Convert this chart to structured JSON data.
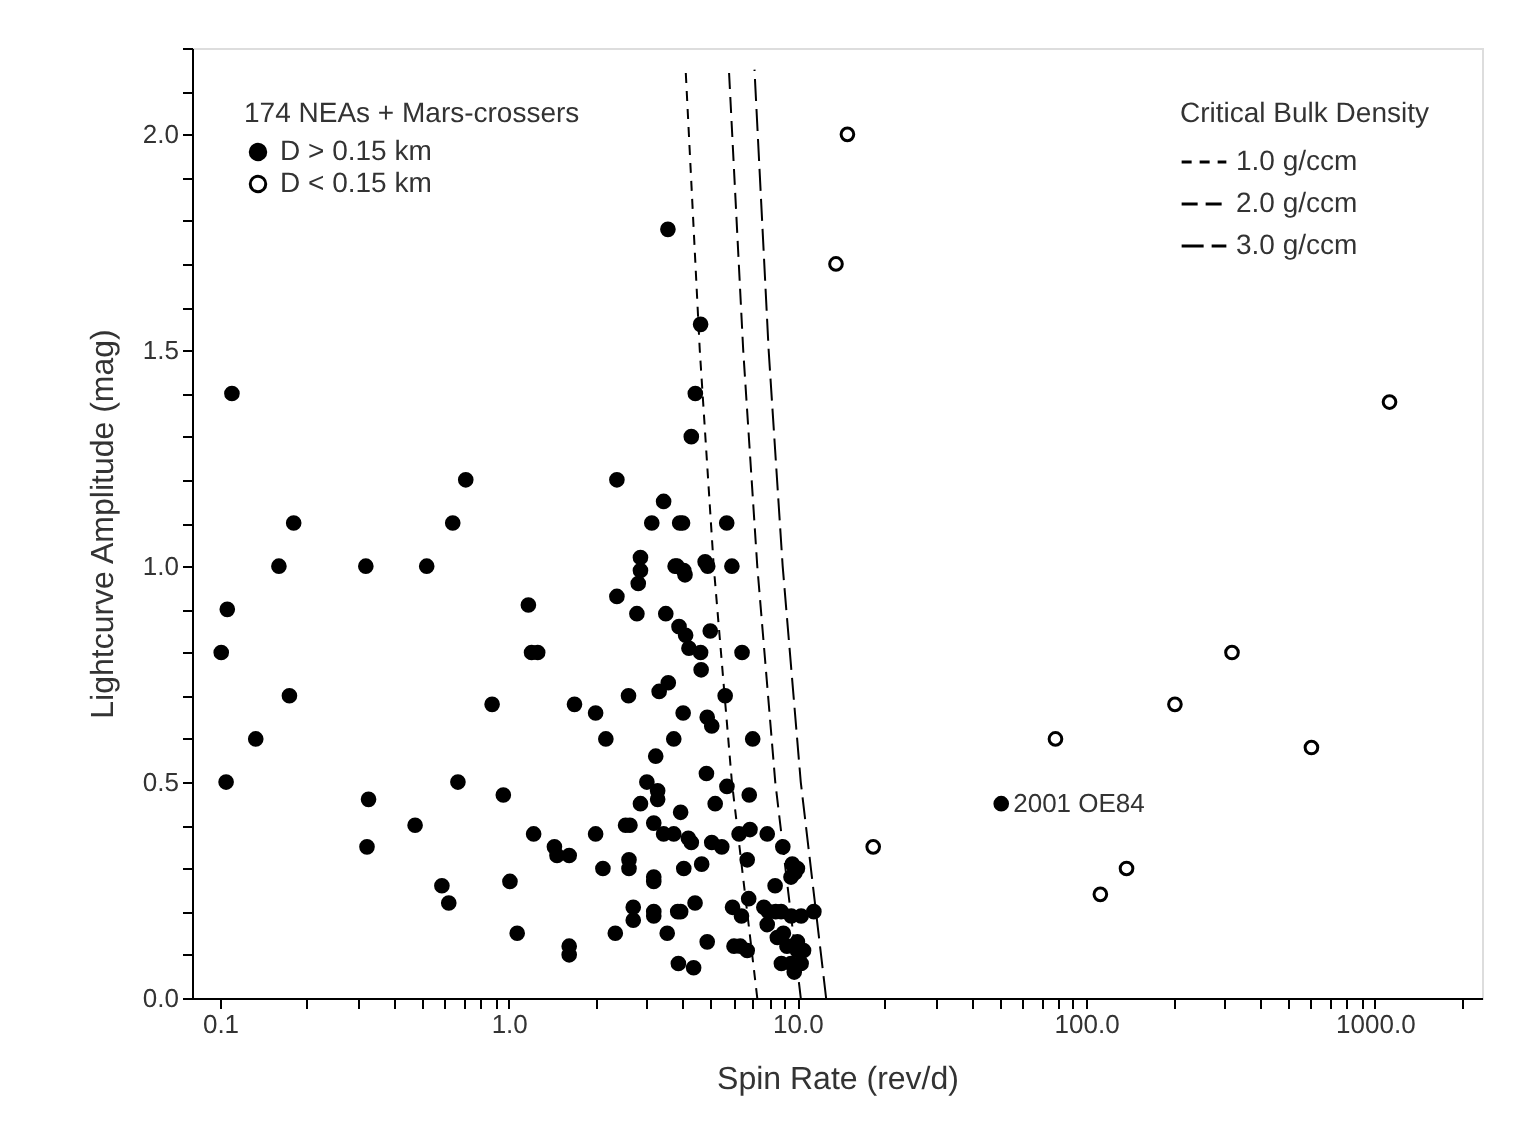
{
  "chart_data": {
    "type": "scatter",
    "xlabel": "Spin Rate (rev/d)",
    "ylabel": "Lightcurve Amplitude (mag)",
    "legend_title": "174 NEAs + Mars-crossers",
    "legend": "top left",
    "log": "x",
    "grid": false,
    "xlim": [
      0.08,
      2350
    ],
    "ylim": [
      0,
      2.2
    ],
    "xticks": [
      {
        "value": 0.1,
        "label": "0.1"
      },
      {
        "value": 0.2,
        "label": null
      },
      {
        "value": 0.3,
        "label": null
      },
      {
        "value": 0.4,
        "label": null
      },
      {
        "value": 0.5,
        "label": null
      },
      {
        "value": 0.6,
        "label": null
      },
      {
        "value": 0.7,
        "label": null
      },
      {
        "value": 0.8,
        "label": null
      },
      {
        "value": 0.9,
        "label": null
      },
      {
        "value": 1,
        "label": "1.0"
      },
      {
        "value": 2,
        "label": null
      },
      {
        "value": 3,
        "label": null
      },
      {
        "value": 4,
        "label": null
      },
      {
        "value": 5,
        "label": null
      },
      {
        "value": 6,
        "label": null
      },
      {
        "value": 7,
        "label": null
      },
      {
        "value": 8,
        "label": null
      },
      {
        "value": 9,
        "label": null
      },
      {
        "value": 10,
        "label": "10.0"
      },
      {
        "value": 20,
        "label": null
      },
      {
        "value": 30,
        "label": null
      },
      {
        "value": 40,
        "label": null
      },
      {
        "value": 50,
        "label": null
      },
      {
        "value": 60,
        "label": null
      },
      {
        "value": 70,
        "label": null
      },
      {
        "value": 80,
        "label": null
      },
      {
        "value": 90,
        "label": null
      },
      {
        "value": 100,
        "label": "100.0"
      },
      {
        "value": 200,
        "label": null
      },
      {
        "value": 300,
        "label": null
      },
      {
        "value": 400,
        "label": null
      },
      {
        "value": 500,
        "label": null
      },
      {
        "value": 600,
        "label": null
      },
      {
        "value": 700,
        "label": null
      },
      {
        "value": 800,
        "label": null
      },
      {
        "value": 900,
        "label": null
      },
      {
        "value": 1000,
        "label": "1000.0"
      },
      {
        "value": 2000,
        "label": null
      }
    ],
    "yticks": [
      {
        "value": 0,
        "label": "0.0"
      },
      {
        "value": 0.1,
        "label": null
      },
      {
        "value": 0.2,
        "label": null
      },
      {
        "value": 0.3,
        "label": null
      },
      {
        "value": 0.4,
        "label": null
      },
      {
        "value": 0.5,
        "label": "0.5"
      },
      {
        "value": 0.6,
        "label": null
      },
      {
        "value": 0.7,
        "label": null
      },
      {
        "value": 0.8,
        "label": null
      },
      {
        "value": 0.9,
        "label": null
      },
      {
        "value": 1.0,
        "label": "1.0"
      },
      {
        "value": 1.1,
        "label": null
      },
      {
        "value": 1.2,
        "label": null
      },
      {
        "value": 1.3,
        "label": null
      },
      {
        "value": 1.4,
        "label": null
      },
      {
        "value": 1.5,
        "label": "1.5"
      },
      {
        "value": 1.6,
        "label": null
      },
      {
        "value": 1.7,
        "label": null
      },
      {
        "value": 1.8,
        "label": null
      },
      {
        "value": 1.9,
        "label": null
      },
      {
        "value": 2.0,
        "label": "2.0"
      },
      {
        "value": 2.1,
        "label": null
      },
      {
        "value": 2.2,
        "label": null
      }
    ],
    "annotations": [
      "Critical Bulk Density",
      {
        "text": "2001 OE84",
        "x": 50.8,
        "y": 0.45
      }
    ],
    "series": [
      {
        "name": "D > 0.15 km",
        "marker": "circle",
        "color": "#000000",
        "x": [
          0.11,
          0.16,
          0.18,
          0.32,
          0.52,
          0.64,
          0.71,
          2.37,
          2.37,
          3.56,
          4.62,
          4.43,
          4.29,
          3.44,
          3.13,
          3.91,
          4.0,
          5.69,
          2.86,
          2.86,
          2.81,
          3.83,
          4.04,
          4.79,
          4.89,
          5.93,
          3.77,
          4.08,
          2.78,
          3.5,
          3.89,
          4.1,
          4.99,
          4.21,
          4.62,
          6.43,
          4.64,
          3.32,
          3.57,
          2.6,
          5.62,
          1.69,
          2.0,
          4.02,
          4.87,
          5.05,
          2.17,
          3.73,
          7.0,
          3.23,
          4.84,
          3.01,
          3.28,
          2.86,
          3.28,
          5.7,
          3.94,
          5.19,
          6.81,
          2.63,
          2.54,
          2.0,
          3.18,
          3.44,
          3.73,
          4.19,
          4.29,
          5.05,
          5.47,
          6.28,
          6.85,
          7.86,
          1.44,
          1.62,
          1.47,
          2.12,
          2.61,
          2.61,
          3.18,
          3.18,
          4.04,
          4.66,
          6.7,
          8.9,
          9.6,
          9.8,
          10.0,
          9.5,
          8.37,
          4.42,
          3.94,
          3.85,
          3.18,
          3.18,
          2.7,
          2.7,
          2.34,
          3.54,
          4.87,
          5.96,
          6.78,
          6.4,
          7.65,
          7.94,
          8.41,
          8.78,
          9.52,
          10.3,
          11.4,
          7.86,
          8.94,
          8.52,
          6.03,
          6.34,
          6.7,
          1.62,
          1.62,
          3.87,
          4.37,
          9.2,
          10.0,
          10.5,
          8.8,
          9.5,
          9.75,
          10.3,
          10.0,
          0.106,
          0.101,
          0.105,
          0.133,
          0.174,
          0.327,
          0.323,
          0.474,
          0.587,
          0.62,
          0.667,
          0.876,
          0.958,
          1.01,
          1.07,
          1.17,
          1.2,
          1.26,
          1.22,
          50.8
        ],
        "values": [
          1.4,
          1.0,
          1.1,
          1.0,
          1.0,
          1.1,
          1.2,
          1.2,
          0.93,
          1.78,
          1.56,
          1.4,
          1.3,
          1.15,
          1.1,
          1.1,
          1.1,
          1.1,
          1.02,
          0.99,
          0.96,
          1.0,
          0.99,
          1.01,
          1.0,
          1.0,
          1.0,
          0.98,
          0.89,
          0.89,
          0.86,
          0.84,
          0.85,
          0.81,
          0.8,
          0.8,
          0.76,
          0.71,
          0.73,
          0.7,
          0.7,
          0.68,
          0.66,
          0.66,
          0.65,
          0.63,
          0.6,
          0.6,
          0.6,
          0.56,
          0.52,
          0.5,
          0.48,
          0.45,
          0.46,
          0.49,
          0.43,
          0.45,
          0.47,
          0.4,
          0.4,
          0.38,
          0.405,
          0.38,
          0.38,
          0.37,
          0.36,
          0.36,
          0.35,
          0.38,
          0.39,
          0.38,
          0.35,
          0.33,
          0.33,
          0.3,
          0.32,
          0.3,
          0.28,
          0.27,
          0.3,
          0.31,
          0.32,
          0.35,
          0.31,
          0.29,
          0.3,
          0.28,
          0.26,
          0.22,
          0.2,
          0.2,
          0.19,
          0.2,
          0.21,
          0.18,
          0.15,
          0.15,
          0.13,
          0.21,
          0.23,
          0.19,
          0.21,
          0.2,
          0.2,
          0.2,
          0.19,
          0.19,
          0.2,
          0.17,
          0.15,
          0.14,
          0.12,
          0.12,
          0.11,
          0.12,
          0.1,
          0.08,
          0.07,
          0.12,
          0.11,
          0.11,
          0.08,
          0.08,
          0.06,
          0.08,
          0.13,
          0.9,
          0.8,
          0.5,
          0.6,
          0.7,
          0.46,
          0.35,
          0.4,
          0.26,
          0.22,
          0.5,
          0.68,
          0.47,
          0.27,
          0.15,
          0.91,
          0.8,
          0.8,
          0.38,
          0.45
        ]
      },
      {
        "name": "D < 0.15 km",
        "marker": "circle",
        "color": "#ffffff",
        "x": [
          14.9,
          13.6,
          1124,
          18.3,
          78.3,
          203,
          320,
          603,
          138,
          112
        ],
        "values": [
          2.0,
          1.7,
          1.38,
          0.35,
          0.6,
          0.68,
          0.8,
          0.58,
          0.3,
          0.24
        ]
      },
      {
        "name": "1.0 g/ccm",
        "type": "line",
        "line_style": "dashed",
        "color": "#000000",
        "x": [
          7.26,
          5.93,
          5.13,
          4.59,
          4.1
        ],
        "values": [
          0,
          0.5,
          1.0,
          1.5,
          2.15
        ]
      },
      {
        "name": "2.0 g/ccm",
        "type": "line",
        "line_style": "dashed",
        "color": "#000000",
        "x": [
          10.27,
          8.38,
          7.26,
          6.49,
          5.79
        ],
        "values": [
          0,
          0.5,
          1.0,
          1.5,
          2.15
        ]
      },
      {
        "name": "3.0 g/ccm",
        "type": "line",
        "line_style": "dashed",
        "color": "#000000",
        "x": [
          12.57,
          10.27,
          8.89,
          7.95,
          7.1
        ],
        "values": [
          0,
          0.5,
          1.0,
          1.5,
          2.15
        ]
      }
    ]
  }
}
